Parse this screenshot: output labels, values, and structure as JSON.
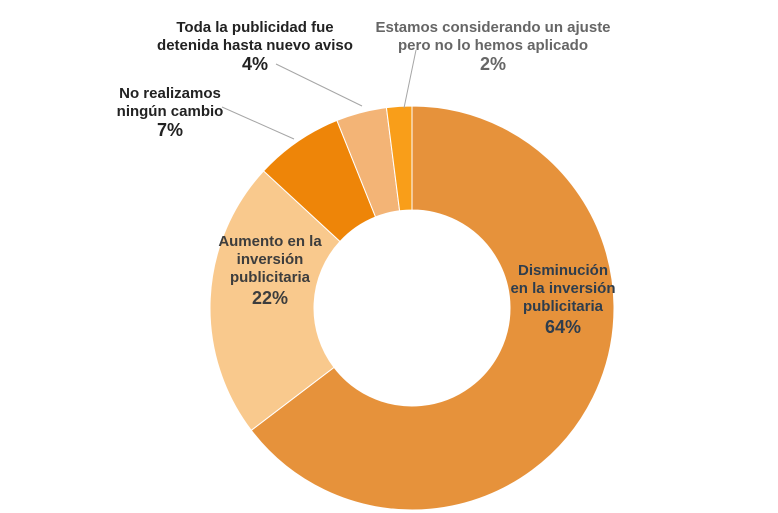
{
  "chart_data": {
    "type": "pie",
    "style": "donut",
    "title": "",
    "legend": "none",
    "slices": [
      {
        "label_lines": [
          "Disminución",
          "en la inversión",
          "publicitaria"
        ],
        "value": 64,
        "value_label": "64%",
        "color": "#e6923b"
      },
      {
        "label_lines": [
          "Aumento en la",
          "inversión",
          "publicitaria"
        ],
        "value": 22,
        "value_label": "22%",
        "color": "#f9c98d"
      },
      {
        "label_lines": [
          "No realizamos",
          "ningún cambio"
        ],
        "value": 7,
        "value_label": "7%",
        "color": "#ee8508"
      },
      {
        "label_lines": [
          "Toda la publicidad fue",
          "detenida hasta nuevo aviso"
        ],
        "value": 4,
        "value_label": "4%",
        "color": "#f3b476"
      },
      {
        "label_lines": [
          "Estamos considerando un ajuste",
          "pero no lo hemos aplicado"
        ],
        "value": 2,
        "value_label": "2%",
        "color": "#f99e19"
      }
    ],
    "label_colors": {
      "Disminución en la inversión publicitaria": "#2e3d4d",
      "Aumento en la inversión publicitaria": "#3d3d3d",
      "No realizamos ningún cambio": "#222222",
      "Toda la publicidad fue detenida hasta nuevo aviso": "#222222",
      "Estamos considerando un ajuste pero no lo hemos aplicado": "#666666"
    }
  }
}
